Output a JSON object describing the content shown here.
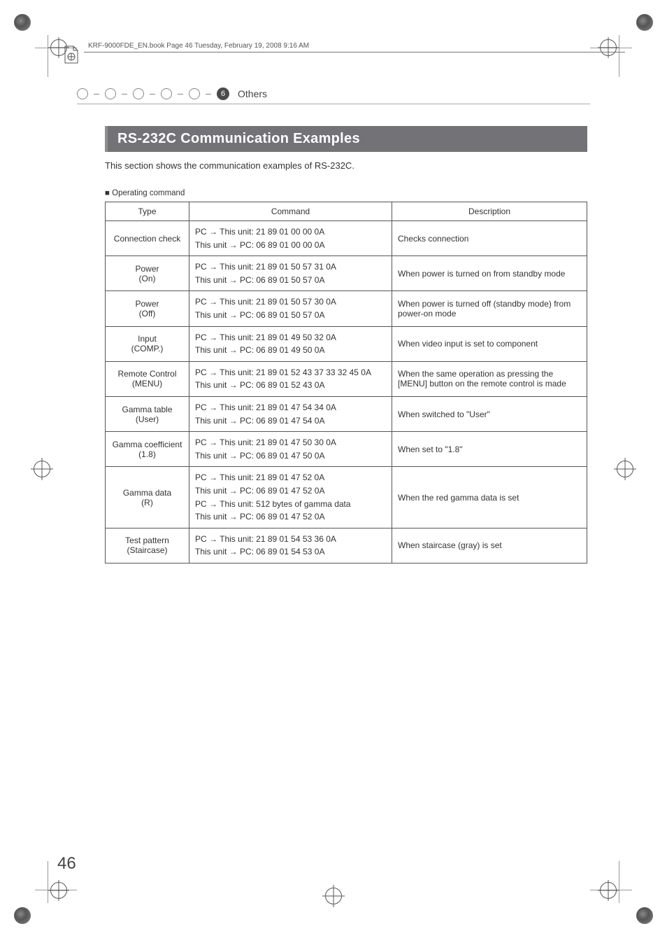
{
  "crop": {
    "book_header_text": "KRF-9000FDE_EN.book  Page 46  Tuesday, February 19, 2008  9:16 AM"
  },
  "breadcrumb": {
    "section_number": "6",
    "section_label": "Others"
  },
  "title": "RS-232C Communication Examples",
  "intro": "This section shows the communication examples of RS-232C.",
  "subhead": "Operating command",
  "table": {
    "headers": [
      "Type",
      "Command",
      "Description"
    ],
    "rows": [
      {
        "type": "Connection check",
        "cmd": [
          "PC → This unit: 21 89 01 00 00 0A",
          "This unit → PC: 06 89 01 00 00 0A"
        ],
        "desc": "Checks connection"
      },
      {
        "type": "Power (On)",
        "cmd": [
          "PC → This unit: 21 89 01 50 57 31 0A",
          "This unit → PC: 06 89 01 50 57 0A"
        ],
        "desc": "When power is turned on from standby mode"
      },
      {
        "type": "Power (Off)",
        "cmd": [
          "PC → This unit: 21 89 01 50 57 30 0A",
          "This unit → PC: 06 89 01 50 57 0A"
        ],
        "desc": "When power is turned off (standby mode) from power-on mode"
      },
      {
        "type": "Input (COMP.)",
        "cmd": [
          "PC → This unit: 21 89 01 49 50 32 0A",
          "This unit → PC: 06 89 01 49 50 0A"
        ],
        "desc": "When video input is set to component"
      },
      {
        "type": "Remote Control (MENU)",
        "cmd": [
          "PC → This unit: 21 89 01 52 43 37 33 32 45 0A",
          "This unit → PC: 06 89 01 52 43 0A"
        ],
        "desc": "When the same operation as pressing the [MENU] button on the remote control is made"
      },
      {
        "type": "Gamma table (User)",
        "cmd": [
          "PC → This unit: 21 89 01 47 54 34 0A",
          "This unit → PC: 06 89 01 47 54 0A"
        ],
        "desc": "When switched to \"User\""
      },
      {
        "type": "Gamma coefficient (1.8)",
        "cmd": [
          "PC → This unit: 21 89 01 47 50 30 0A",
          "This unit → PC: 06 89 01 47 50 0A"
        ],
        "desc": "When set to \"1.8\""
      },
      {
        "type": "Gamma data (R)",
        "cmd": [
          "PC → This unit: 21 89 01 47 52 0A",
          "This unit → PC: 06 89 01 47 52 0A",
          "PC → This unit: 512 bytes of gamma data",
          "This unit → PC: 06 89 01 47 52 0A"
        ],
        "desc": "When the red gamma data is set"
      },
      {
        "type": "Test pattern (Staircase)",
        "cmd": [
          "PC → This unit: 21 89 01 54 53 36 0A",
          "This unit → PC: 06 89 01 54 53 0A"
        ],
        "desc": "When staircase (gray) is set"
      }
    ]
  },
  "page_number": "46",
  "colors": {
    "title_bg": "#737377",
    "title_fg": "#ffffff",
    "border": "#555555",
    "text": "#333333",
    "bc_num_bg": "#4a4a4a"
  }
}
